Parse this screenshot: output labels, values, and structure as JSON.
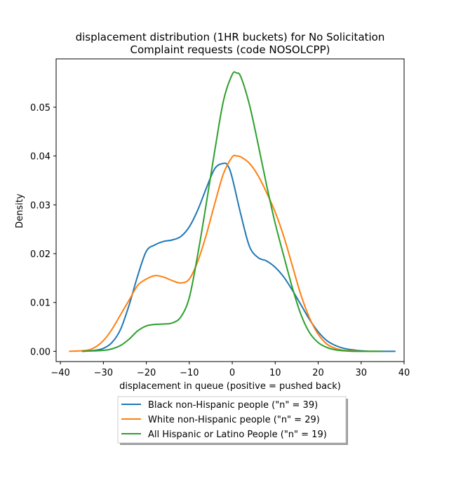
{
  "chart_data": {
    "type": "line",
    "title": [
      "displacement distribution (1HR buckets) for No Solicitation",
      "Complaint requests (code NOSOLCPP)"
    ],
    "xlabel": "displacement in queue (positive = pushed back)",
    "ylabel": "Density",
    "xlim": [
      -41,
      40
    ],
    "ylim": [
      -0.0021,
      0.0599
    ],
    "xticks": [
      -40,
      -30,
      -20,
      -10,
      0,
      10,
      20,
      30,
      40
    ],
    "xtick_labels": [
      "−40",
      "−30",
      "−20",
      "−10",
      "0",
      "10",
      "20",
      "30",
      "40"
    ],
    "yticks": [
      0.0,
      0.01,
      0.02,
      0.03,
      0.04,
      0.05
    ],
    "ytick_labels": [
      "0.00",
      "0.01",
      "0.02",
      "0.03",
      "0.04",
      "0.05"
    ],
    "grid": false,
    "legend_position": "below plot, centered",
    "series": [
      {
        "name": "Black non-Hispanic people (\"n\" = 39)",
        "color": "#1f77b4",
        "x": [
          -35,
          -32,
          -30,
          -28,
          -26,
          -24,
          -22,
          -20,
          -18,
          -16,
          -14,
          -12,
          -10,
          -8,
          -6,
          -4,
          -2,
          -1,
          0,
          2,
          4,
          6,
          8,
          10,
          12,
          14,
          16,
          18,
          20,
          22,
          24,
          26,
          28,
          30,
          32,
          34,
          38
        ],
        "y": [
          0.0,
          0.0002,
          0.0006,
          0.0018,
          0.0045,
          0.0095,
          0.0155,
          0.0205,
          0.0218,
          0.0225,
          0.0228,
          0.0235,
          0.0255,
          0.029,
          0.0335,
          0.0375,
          0.0385,
          0.038,
          0.0355,
          0.028,
          0.0215,
          0.0192,
          0.0185,
          0.0172,
          0.0152,
          0.0125,
          0.0095,
          0.0065,
          0.004,
          0.0022,
          0.0012,
          0.0006,
          0.0003,
          0.0001,
          0.0,
          0.0,
          0.0
        ]
      },
      {
        "name": "White non-Hispanic people (\"n\" = 29)",
        "color": "#ff7f0e",
        "x": [
          -38,
          -34,
          -32,
          -30,
          -28,
          -26,
          -24,
          -22,
          -20,
          -18,
          -16,
          -14,
          -12,
          -10,
          -8,
          -6,
          -4,
          -2,
          0,
          1,
          2,
          4,
          6,
          8,
          10,
          12,
          14,
          16,
          18,
          20,
          22,
          24,
          26,
          28,
          30,
          34
        ],
        "y": [
          0.0,
          0.0002,
          0.0008,
          0.0022,
          0.0045,
          0.0075,
          0.0105,
          0.0135,
          0.0148,
          0.0155,
          0.0152,
          0.0145,
          0.014,
          0.0148,
          0.0185,
          0.024,
          0.0305,
          0.0365,
          0.0398,
          0.04,
          0.0398,
          0.0385,
          0.036,
          0.0325,
          0.0285,
          0.0235,
          0.0175,
          0.0115,
          0.0068,
          0.0035,
          0.0015,
          0.0006,
          0.0002,
          0.0001,
          0.0,
          0.0
        ]
      },
      {
        "name": "All Hispanic or Latino People (\"n\" = 19)",
        "color": "#2ca02c",
        "x": [
          -35,
          -30,
          -28,
          -26,
          -24,
          -22,
          -20,
          -18,
          -16,
          -14,
          -12,
          -10,
          -8,
          -6,
          -4,
          -2,
          0,
          1,
          2,
          4,
          6,
          8,
          10,
          12,
          14,
          16,
          18,
          20,
          22,
          24,
          26,
          28,
          30,
          35
        ],
        "y": [
          0.0,
          0.0002,
          0.0005,
          0.0012,
          0.0025,
          0.0042,
          0.0052,
          0.0055,
          0.0056,
          0.0058,
          0.007,
          0.011,
          0.02,
          0.0305,
          0.0415,
          0.0515,
          0.0567,
          0.057,
          0.0562,
          0.0505,
          0.0425,
          0.034,
          0.0262,
          0.0195,
          0.013,
          0.0075,
          0.0038,
          0.0018,
          0.0008,
          0.0003,
          0.0001,
          0.0,
          0.0,
          0.0
        ]
      }
    ]
  }
}
